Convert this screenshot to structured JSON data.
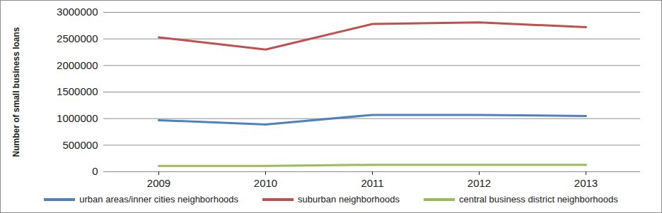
{
  "chart_data": {
    "type": "line",
    "categories": [
      "2009",
      "2010",
      "2011",
      "2012",
      "2013"
    ],
    "y_label": "Number of small business loans",
    "ylim": [
      0,
      3000000
    ],
    "yticks": [
      0,
      500000,
      1000000,
      1500000,
      2000000,
      2500000,
      3000000
    ],
    "grid": true,
    "legend": "bottom",
    "series": [
      {
        "name": "urban areas/inner cities neighborhoods",
        "color": "#4f81bd",
        "values": [
          970000,
          890000,
          1070000,
          1070000,
          1050000
        ]
      },
      {
        "name": "suburban neighborhoods",
        "color": "#c0504d",
        "values": [
          2530000,
          2300000,
          2780000,
          2810000,
          2720000
        ]
      },
      {
        "name": "central business district neighborhoods",
        "color": "#9bbb59",
        "values": [
          110000,
          110000,
          130000,
          130000,
          130000
        ]
      }
    ]
  }
}
